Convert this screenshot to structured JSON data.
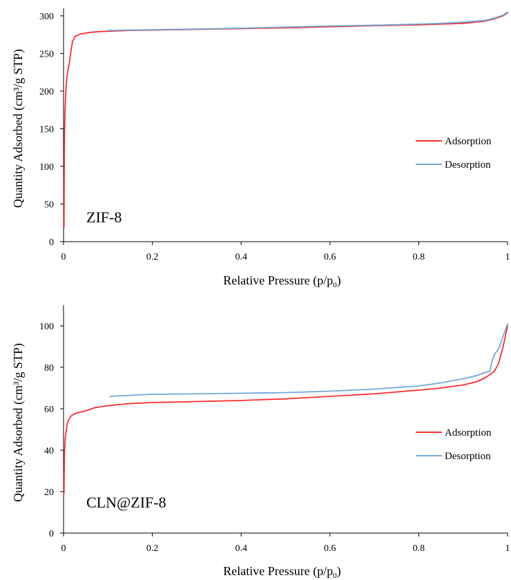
{
  "chart_data": [
    {
      "type": "line",
      "title": "",
      "annotation": "ZIF-8",
      "xlabel": "Relative Pressure (p/p",
      "xlabel_sub": "0",
      "xlabel_end": ")",
      "ylabel": "Quantity Adsorbed (cm³/g STP)",
      "xlim": [
        0,
        1
      ],
      "ylim": [
        0,
        310
      ],
      "xticks": [
        0,
        0.2,
        0.4,
        0.6,
        0.8,
        1
      ],
      "xtick_labels": [
        "0",
        "0.2",
        "0.4",
        "0.6",
        "0.8",
        "1"
      ],
      "yticks": [
        0,
        50,
        100,
        150,
        200,
        250,
        300
      ],
      "ytick_labels": [
        "0",
        "50",
        "100",
        "150",
        "200",
        "250",
        "300"
      ],
      "grid": false,
      "legend_position": "right",
      "series": [
        {
          "name": "Adsorption",
          "color": "#ff2a2a",
          "x": [
            0.001,
            0.002,
            0.004,
            0.006,
            0.008,
            0.01,
            0.013,
            0.016,
            0.02,
            0.025,
            0.03,
            0.04,
            0.06,
            0.08,
            0.1,
            0.15,
            0.2,
            0.3,
            0.4,
            0.5,
            0.6,
            0.7,
            0.8,
            0.85,
            0.9,
            0.95,
            0.97,
            0.99,
            1.0
          ],
          "y": [
            18,
            140,
            185,
            208,
            220,
            228,
            237,
            250,
            265,
            272,
            274,
            276,
            278,
            279,
            279.5,
            280.5,
            281,
            282,
            283,
            284,
            285.5,
            287,
            288,
            289,
            290,
            293,
            296,
            300,
            304
          ]
        },
        {
          "name": "Desorption",
          "color": "#6fa8dc",
          "x": [
            0.1,
            0.15,
            0.2,
            0.3,
            0.4,
            0.5,
            0.6,
            0.7,
            0.8,
            0.85,
            0.9,
            0.95,
            0.97,
            0.99,
            1.0
          ],
          "y": [
            280.5,
            281,
            281.5,
            282.5,
            283.5,
            285,
            286.5,
            287.5,
            289,
            290,
            291.5,
            294,
            297,
            301,
            305
          ]
        }
      ]
    },
    {
      "type": "line",
      "title": "",
      "annotation": "CLN@ZIF-8",
      "xlabel": "Relative Pressure (p/p",
      "xlabel_sub": "0",
      "xlabel_end": ")",
      "ylabel": "Quantity Adsorbed (cm³/g STP)",
      "xlim": [
        0,
        1
      ],
      "ylim": [
        0,
        110
      ],
      "xticks": [
        0,
        0.2,
        0.4,
        0.6,
        0.8,
        1
      ],
      "xtick_labels": [
        "0",
        "0.2",
        "0.4",
        "0.6",
        "0.8",
        "1"
      ],
      "yticks": [
        0,
        20,
        40,
        60,
        80,
        100
      ],
      "ytick_labels": [
        "0",
        "20",
        "40",
        "60",
        "80",
        "100"
      ],
      "grid": false,
      "legend_position": "right",
      "series": [
        {
          "name": "Adsorption",
          "color": "#ff2a2a",
          "x": [
            0.001,
            0.002,
            0.004,
            0.007,
            0.01,
            0.015,
            0.02,
            0.03,
            0.05,
            0.07,
            0.1,
            0.15,
            0.2,
            0.3,
            0.4,
            0.5,
            0.6,
            0.7,
            0.8,
            0.85,
            0.9,
            0.93,
            0.95,
            0.97,
            0.98,
            0.99,
            1.0
          ],
          "y": [
            19,
            38,
            46,
            51,
            54,
            56,
            57,
            58,
            59,
            60.5,
            61.5,
            62.5,
            63,
            63.5,
            64,
            64.8,
            66,
            67.2,
            69,
            70,
            71.5,
            73,
            75,
            78,
            82,
            90,
            100
          ]
        },
        {
          "name": "Desorption",
          "color": "#6fa8dc",
          "x": [
            0.105,
            0.15,
            0.2,
            0.3,
            0.4,
            0.5,
            0.6,
            0.7,
            0.8,
            0.85,
            0.9,
            0.93,
            0.95,
            0.96,
            0.965,
            0.97,
            0.98,
            0.99,
            1.0
          ],
          "y": [
            66,
            66.5,
            67,
            67.2,
            67.5,
            67.8,
            68.5,
            69.5,
            71,
            72.5,
            74.5,
            76,
            77.5,
            78,
            83,
            86,
            89,
            95,
            101
          ]
        }
      ]
    }
  ]
}
